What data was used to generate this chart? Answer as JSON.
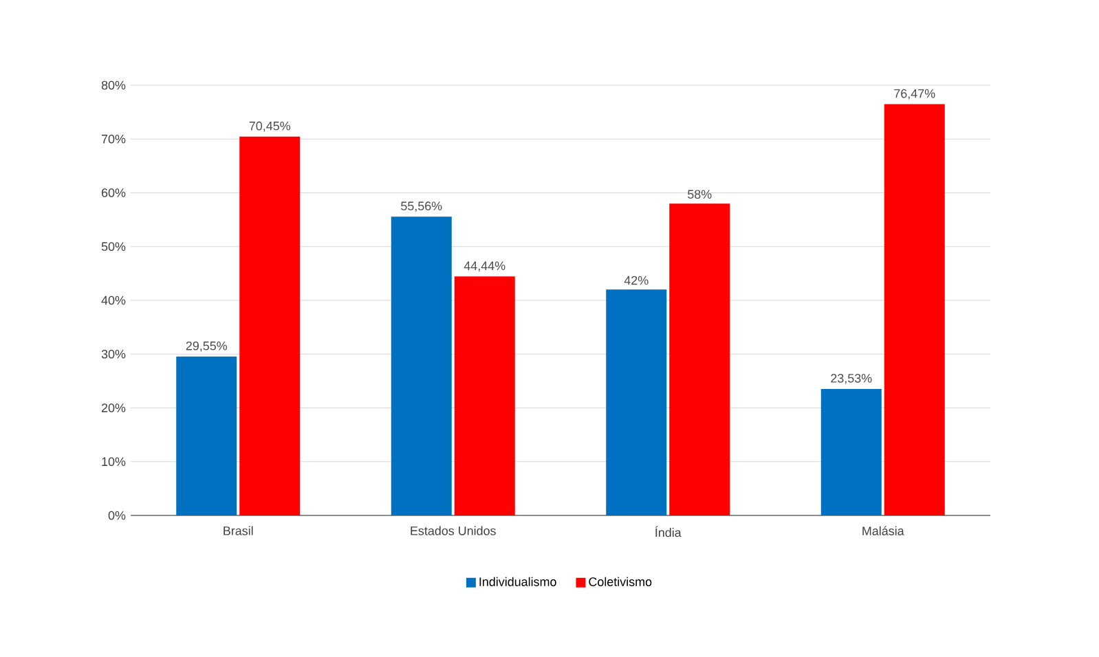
{
  "chart_data": {
    "type": "bar",
    "categories": [
      "Brasil",
      "Estados Unidos",
      "Índia",
      "Malásia"
    ],
    "series": [
      {
        "name": "Individualismo",
        "color": "#0070c0",
        "values": [
          29.55,
          55.56,
          42,
          23.53
        ],
        "value_labels": [
          "29,55%",
          "55,56%",
          "42%",
          "23,53%"
        ]
      },
      {
        "name": "Coletivismo",
        "color": "#ff0000",
        "values": [
          70.45,
          44.44,
          58,
          76.47
        ],
        "value_labels": [
          "70,45%",
          "44,44%",
          "58%",
          "76,47%"
        ]
      }
    ],
    "ylim": [
      0,
      80
    ],
    "yticks": [
      {
        "value": 0,
        "label": "0%"
      },
      {
        "value": 10,
        "label": "10%"
      },
      {
        "value": 20,
        "label": "20%"
      },
      {
        "value": 30,
        "label": "30%"
      },
      {
        "value": 40,
        "label": "40%"
      },
      {
        "value": 50,
        "label": "50%"
      },
      {
        "value": 60,
        "label": "60%"
      },
      {
        "value": 70,
        "label": "70%"
      },
      {
        "value": 80,
        "label": "80%"
      }
    ],
    "grid": "y",
    "legend": "bottom"
  }
}
